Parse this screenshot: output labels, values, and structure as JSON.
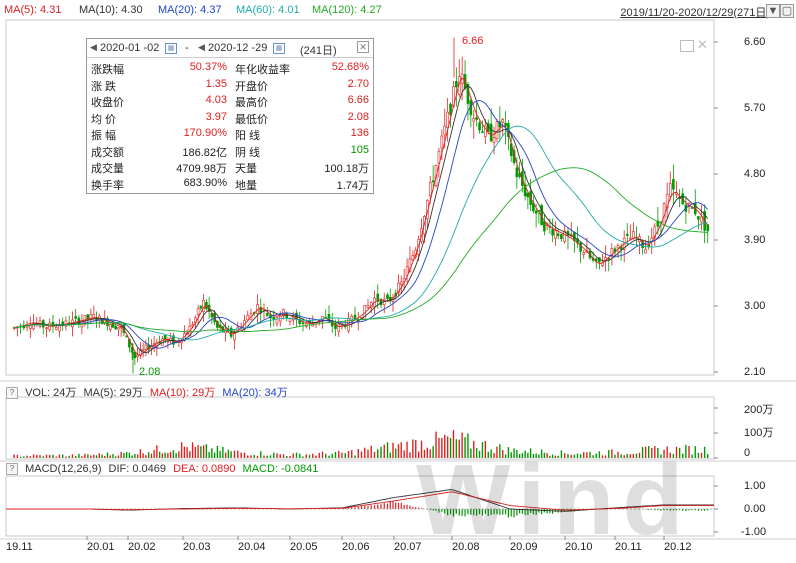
{
  "ma_bar": {
    "items": [
      {
        "label": "MA(5): 4.31",
        "color": "#e02020"
      },
      {
        "label": "MA(10): 4.30",
        "color": "#333333"
      },
      {
        "label": "MA(20): 4.37",
        "color": "#2244cc"
      },
      {
        "label": "MA(60): 4.01",
        "color": "#22aaaa"
      },
      {
        "label": "MA(120): 4.27",
        "color": "#22aa22"
      }
    ],
    "range": "2019/11/20-2020/12/29(271日)"
  },
  "info": {
    "start_date": "2020-01 -02",
    "dash": "-",
    "end_date": "2020-12 -29",
    "days": "(241日)",
    "rows": [
      {
        "l1": "涨跌幅",
        "v1": "50.37%",
        "c1": "red",
        "l2": "年化收益率",
        "v2": "52.68%",
        "c2": "red"
      },
      {
        "l1": "涨  跌",
        "v1": "1.35",
        "c1": "red",
        "l2": "开盘价",
        "v2": "2.70",
        "c2": "red"
      },
      {
        "l1": "收盘价",
        "v1": "4.03",
        "c1": "red",
        "l2": "最高价",
        "v2": "6.66",
        "c2": "red"
      },
      {
        "l1": "均  价",
        "v1": "3.97",
        "c1": "red",
        "l2": "最低价",
        "v2": "2.08",
        "c2": "red"
      },
      {
        "l1": "振  幅",
        "v1": "170.90%",
        "c1": "red",
        "l2": "阳  线",
        "v2": "136",
        "c2": "red"
      },
      {
        "l1": "成交额",
        "v1": "186.82亿",
        "c1": "dark",
        "l2": "阴  线",
        "v2": "105",
        "c2": "green"
      },
      {
        "l1": "成交量",
        "v1": "4709.98万",
        "c1": "dark",
        "l2": "天量",
        "v2": "100.18万",
        "c2": "dark"
      },
      {
        "l1": "换手率",
        "v1": "683.90%",
        "c1": "dark",
        "l2": "地量",
        "v2": "1.74万",
        "c2": "dark"
      }
    ]
  },
  "vol_header": {
    "q": "?",
    "items": [
      {
        "label": "VOL: 24万",
        "color": "#333333"
      },
      {
        "label": "MA(5): 29万",
        "color": "#333333"
      },
      {
        "label": "MA(10): 29万",
        "color": "#e02020"
      },
      {
        "label": "MA(20): 34万",
        "color": "#2244cc"
      }
    ]
  },
  "macd_header": {
    "q": "?",
    "items": [
      {
        "label": "MACD(12,26,9)",
        "color": "#333333"
      },
      {
        "label": "DIF: 0.0469",
        "color": "#333333"
      },
      {
        "label": "DEA: 0.0890",
        "color": "#e02020"
      },
      {
        "label": "MACD: -0.0841",
        "color": "#009900"
      }
    ]
  },
  "watermark": "Wind",
  "chart_data": [
    {
      "type": "candlestick",
      "title": "",
      "x_tick_labels": [
        "19.11",
        "20.01",
        "20.02",
        "20.03",
        "20.04",
        "20.05",
        "20.06",
        "20.07",
        "20.08",
        "20.09",
        "20.10",
        "20.11",
        "20.12"
      ],
      "y_tick_labels": [
        "6.60",
        "5.70",
        "4.80",
        "3.90",
        "3.00",
        "2.10"
      ],
      "ylim": [
        2.1,
        6.6
      ],
      "annotations": [
        {
          "text": "6.66",
          "value": 6.66,
          "month": "20.08"
        },
        {
          "text": "2.08",
          "value": 2.08,
          "month": "20.02"
        }
      ],
      "series": [
        {
          "name": "MA(5)",
          "color": "#e02020"
        },
        {
          "name": "MA(10)",
          "color": "#333333"
        },
        {
          "name": "MA(20)",
          "color": "#2244cc"
        },
        {
          "name": "MA(60)",
          "color": "#22aaaa"
        },
        {
          "name": "MA(120)",
          "color": "#22aa22"
        }
      ],
      "close_path": [
        [
          "19.11",
          2.7
        ],
        [
          "19.11",
          2.78
        ],
        [
          "19.11",
          2.72
        ],
        [
          "19.11",
          2.75
        ],
        [
          "19.11",
          2.8
        ],
        [
          "20.01",
          2.85
        ],
        [
          "20.01",
          2.78
        ],
        [
          "20.01",
          2.7
        ],
        [
          "20.02",
          2.3
        ],
        [
          "20.02",
          2.45
        ],
        [
          "20.02",
          2.55
        ],
        [
          "20.02",
          2.5
        ],
        [
          "20.03",
          2.7
        ],
        [
          "20.03",
          3.05
        ],
        [
          "20.03",
          2.7
        ],
        [
          "20.03",
          2.6
        ],
        [
          "20.04",
          2.8
        ],
        [
          "20.04",
          3.0
        ],
        [
          "20.04",
          2.85
        ],
        [
          "20.04",
          2.9
        ],
        [
          "20.05",
          2.8
        ],
        [
          "20.05",
          2.75
        ],
        [
          "20.05",
          2.85
        ],
        [
          "20.05",
          2.7
        ],
        [
          "20.06",
          2.78
        ],
        [
          "20.06",
          2.9
        ],
        [
          "20.06",
          3.1
        ],
        [
          "20.06",
          3.05
        ],
        [
          "20.07",
          3.3
        ],
        [
          "20.07",
          3.8
        ],
        [
          "20.07",
          4.6
        ],
        [
          "20.07",
          5.4
        ],
        [
          "20.08",
          6.2
        ],
        [
          "20.08",
          5.6
        ],
        [
          "20.08",
          5.3
        ],
        [
          "20.08",
          5.5
        ],
        [
          "20.09",
          4.8
        ],
        [
          "20.09",
          4.4
        ],
        [
          "20.09",
          4.1
        ],
        [
          "20.09",
          4.0
        ],
        [
          "20.10",
          3.9
        ],
        [
          "20.10",
          3.75
        ],
        [
          "20.10",
          3.55
        ],
        [
          "20.10",
          3.7
        ],
        [
          "20.11",
          3.85
        ],
        [
          "20.11",
          3.95
        ],
        [
          "20.11",
          3.8
        ],
        [
          "20.11",
          4.1
        ],
        [
          "20.12",
          4.6
        ],
        [
          "20.12",
          4.4
        ],
        [
          "20.12",
          4.3
        ],
        [
          "20.12",
          4.03
        ]
      ]
    },
    {
      "type": "bar",
      "title": "",
      "y_tick_labels": [
        "200万",
        "100万",
        "0"
      ],
      "ylim": [
        0,
        200
      ],
      "unit": "万",
      "volume_path": [
        [
          "19.11",
          12
        ],
        [
          "20.01",
          15
        ],
        [
          "20.02",
          25
        ],
        [
          "20.03",
          60
        ],
        [
          "20.04",
          30
        ],
        [
          "20.05",
          18
        ],
        [
          "20.06",
          25
        ],
        [
          "20.07",
          60
        ],
        [
          "20.08",
          100
        ],
        [
          "20.09",
          40
        ],
        [
          "20.10",
          25
        ],
        [
          "20.11",
          30
        ],
        [
          "20.12",
          45
        ]
      ]
    },
    {
      "type": "bar",
      "title": "",
      "y_tick_labels": [
        "1.00",
        "0.00",
        "-1.00"
      ],
      "ylim": [
        -1,
        1
      ],
      "macd_path": [
        [
          "19.11",
          0.0
        ],
        [
          "20.01",
          0.02
        ],
        [
          "20.02",
          -0.08
        ],
        [
          "20.03",
          0.05
        ],
        [
          "20.04",
          0.04
        ],
        [
          "20.05",
          -0.02
        ],
        [
          "20.06",
          0.03
        ],
        [
          "20.07",
          0.35
        ],
        [
          "20.08",
          -0.3
        ],
        [
          "20.09",
          -0.35
        ],
        [
          "20.10",
          -0.15
        ],
        [
          "20.11",
          0.05
        ],
        [
          "20.12",
          -0.08
        ]
      ],
      "dif_path": [
        [
          "19.11",
          0.0
        ],
        [
          "20.01",
          0.0
        ],
        [
          "20.02",
          -0.05
        ],
        [
          "20.03",
          0.02
        ],
        [
          "20.04",
          0.05
        ],
        [
          "20.05",
          0.0
        ],
        [
          "20.06",
          0.05
        ],
        [
          "20.07",
          0.5
        ],
        [
          "20.08",
          0.85
        ],
        [
          "20.09",
          0.0
        ],
        [
          "20.10",
          -0.1
        ],
        [
          "20.11",
          0.05
        ],
        [
          "20.12",
          0.18
        ]
      ],
      "dea_path": [
        [
          "19.11",
          0.0
        ],
        [
          "20.01",
          0.0
        ],
        [
          "20.02",
          -0.03
        ],
        [
          "20.03",
          0.0
        ],
        [
          "20.04",
          0.03
        ],
        [
          "20.05",
          0.01
        ],
        [
          "20.06",
          0.03
        ],
        [
          "20.07",
          0.35
        ],
        [
          "20.08",
          0.75
        ],
        [
          "20.09",
          0.15
        ],
        [
          "20.10",
          -0.05
        ],
        [
          "20.11",
          0.02
        ],
        [
          "20.12",
          0.15
        ]
      ]
    }
  ]
}
